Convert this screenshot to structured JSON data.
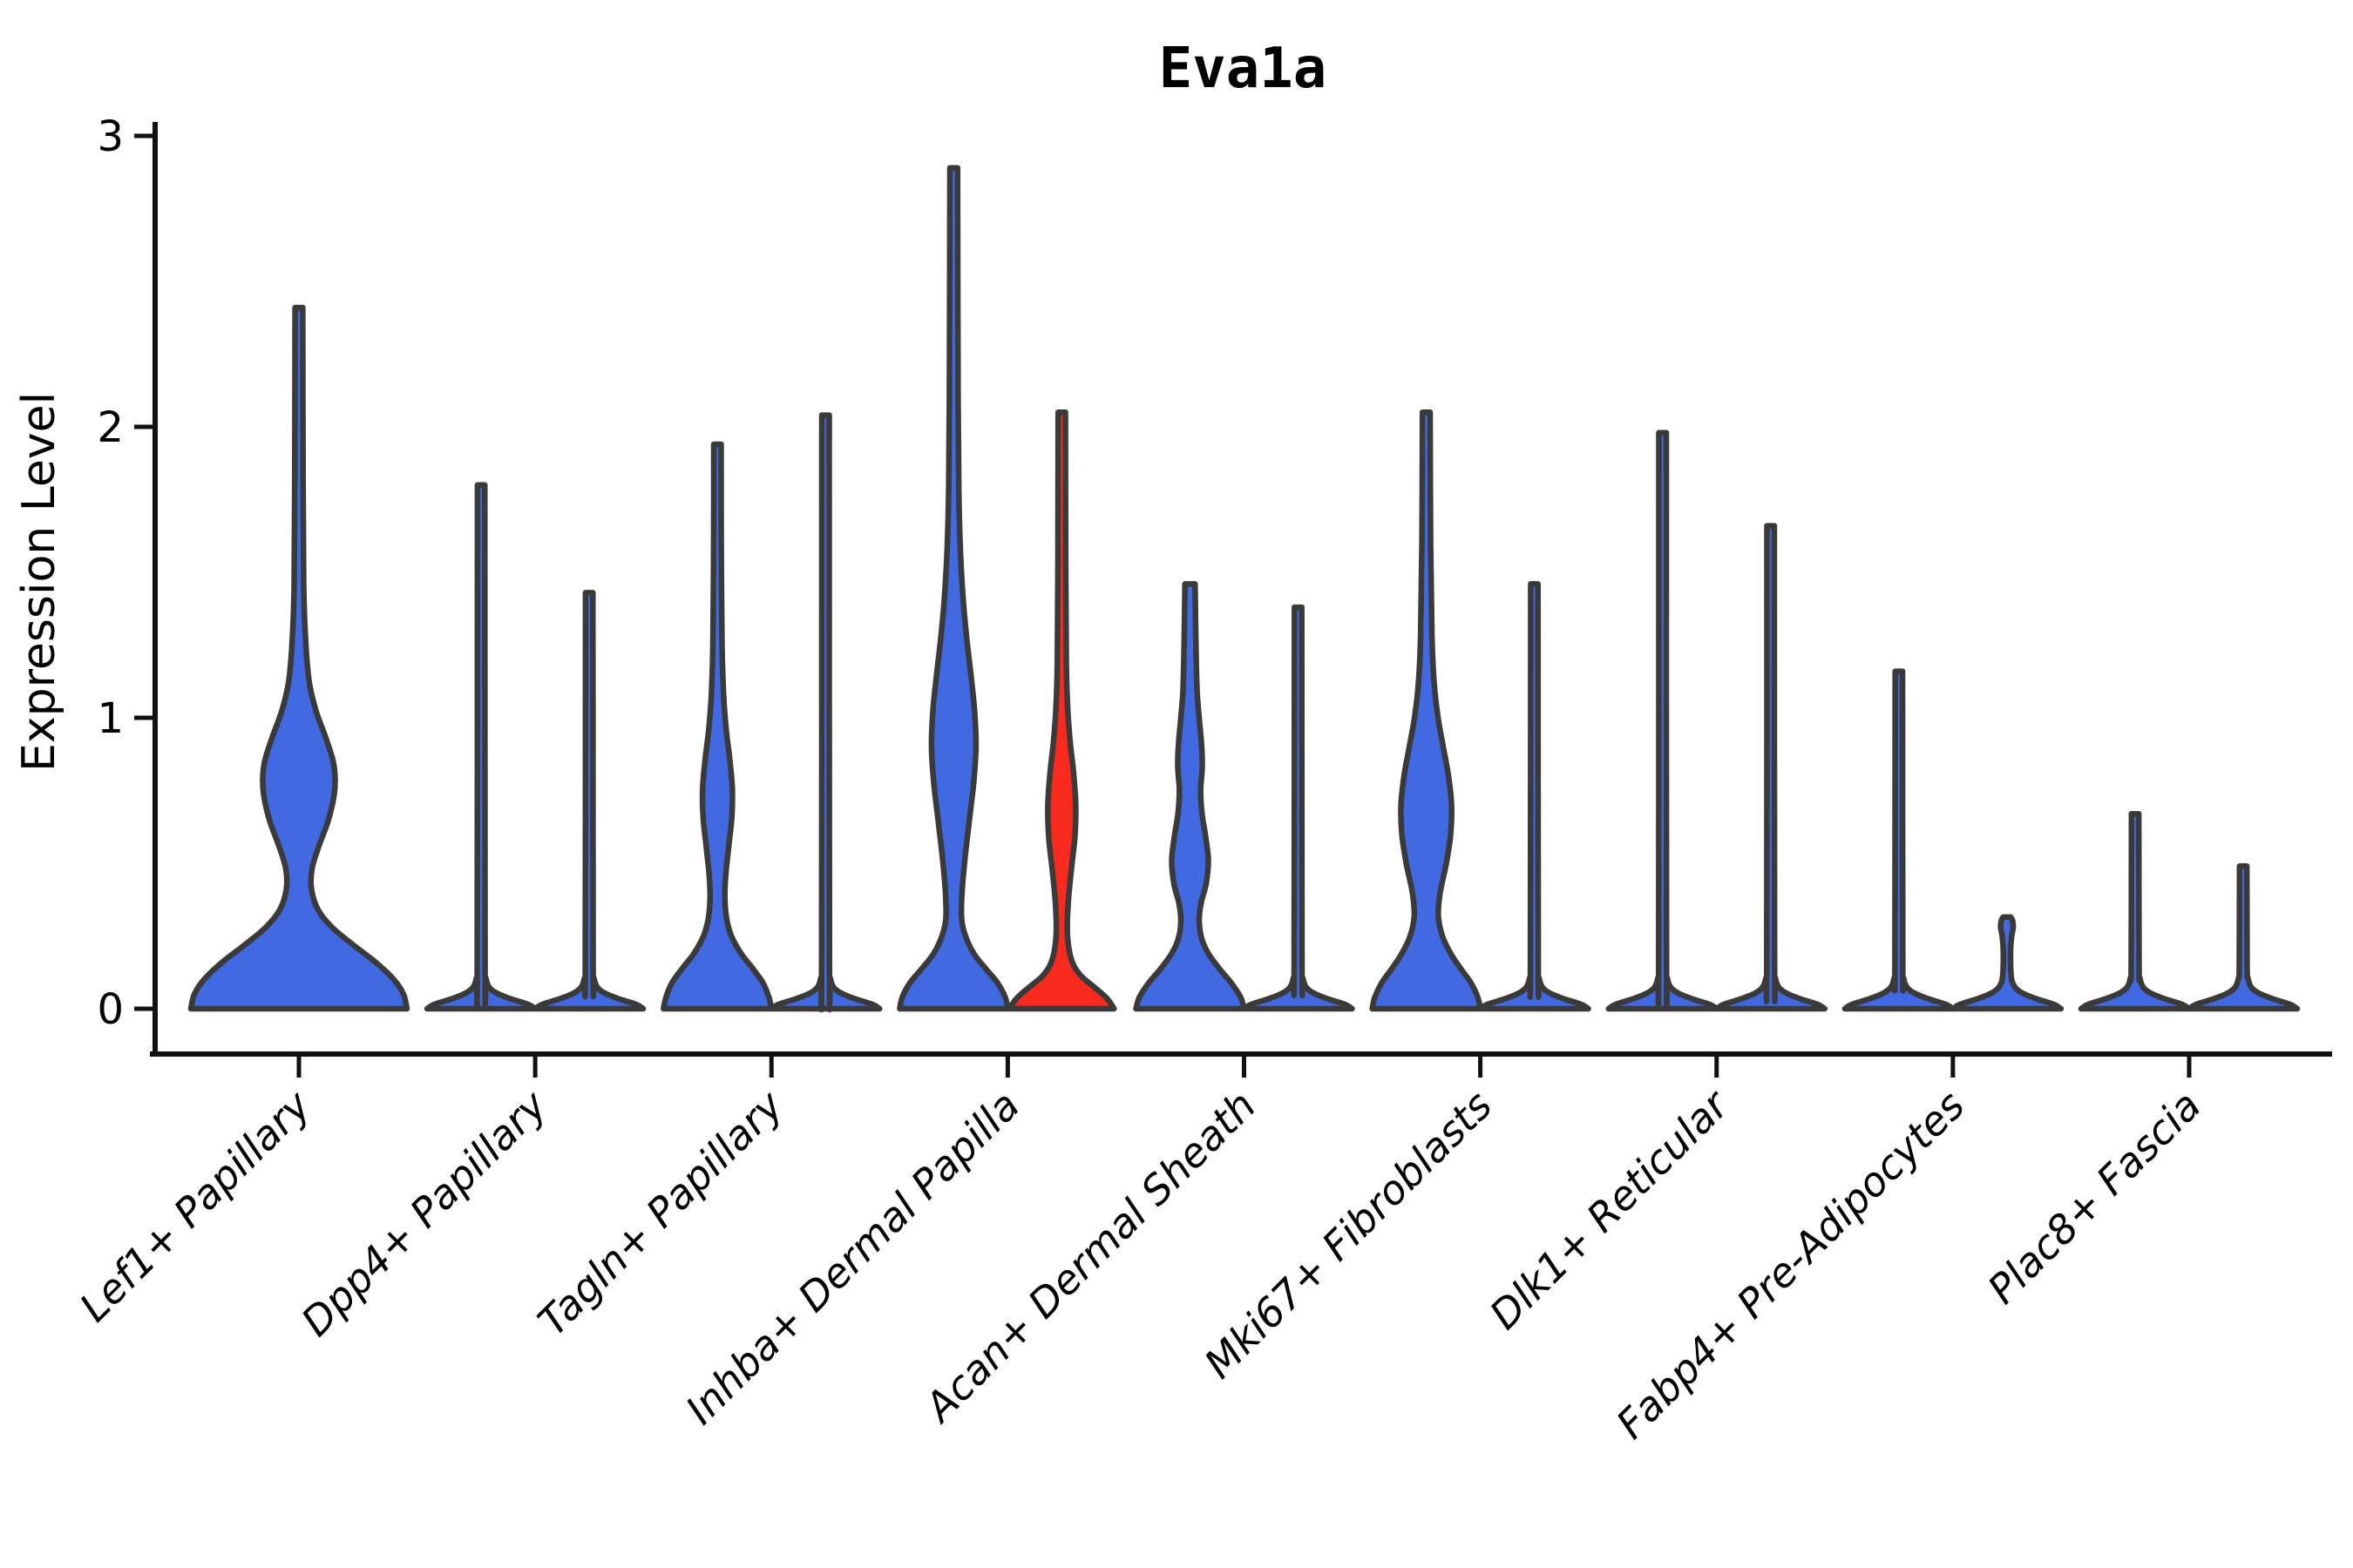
{
  "title": "Eva1a",
  "axes": {
    "ylabel": "Expression Level",
    "ytick_labels": [
      "0",
      "1",
      "2",
      "3"
    ]
  },
  "colors": {
    "violin_blue": "#4169E1",
    "violin_red": "#F8291D",
    "violin_outline": "#3A3A3A",
    "axis": "#111111",
    "text": "#000000",
    "background": "#FFFFFF"
  },
  "chart_data": {
    "type": "violin",
    "title": "Eva1a",
    "xlabel": "",
    "ylabel": "Expression Level",
    "ylim": [
      0,
      3
    ],
    "yticks": [
      0,
      1,
      2,
      3
    ],
    "grid": false,
    "legend": "none",
    "categories": [
      "Lef1+ Papillary",
      "Dpp4+ Papillary",
      "Tagln+ Papillary",
      "Inhba+ Dermal Papilla",
      "Acan+ Dermal Sheath",
      "Mki67+ Fibroblasts",
      "Dlk1+ Reticular",
      "Fabp4+ Pre-Adipocytes",
      "Plac8+ Fascia"
    ],
    "violins": [
      {
        "cat": 0,
        "slot": "center",
        "color": "#4169E1",
        "max": 2.41,
        "profile": [
          [
            0,
            124
          ],
          [
            0.05,
            120
          ],
          [
            0.1,
            109
          ],
          [
            0.16,
            88
          ],
          [
            0.22,
            62
          ],
          [
            0.28,
            38
          ],
          [
            0.34,
            22
          ],
          [
            0.41,
            14.5
          ],
          [
            0.48,
            15
          ],
          [
            0.56,
            23
          ],
          [
            0.65,
            34
          ],
          [
            0.75,
            41
          ],
          [
            0.84,
            40
          ],
          [
            0.93,
            31
          ],
          [
            1.02,
            20
          ],
          [
            1.12,
            12
          ],
          [
            1.25,
            8
          ],
          [
            1.45,
            5.5
          ],
          [
            1.8,
            4.8
          ],
          [
            2.41,
            4.4
          ]
        ]
      },
      {
        "cat": 1,
        "slot": "left",
        "color": "#4169E1",
        "max": 1.8,
        "profile": [
          [
            0,
            62
          ],
          [
            0.015,
            54
          ],
          [
            0.035,
            33
          ],
          [
            0.055,
            17
          ],
          [
            0.075,
            9
          ],
          [
            0.105,
            5.5
          ],
          [
            0.15,
            4.5
          ],
          [
            1.8,
            4.2
          ]
        ]
      },
      {
        "cat": 1,
        "slot": "right",
        "color": "#4169E1",
        "max": 1.43,
        "profile": [
          [
            0,
            62
          ],
          [
            0.015,
            54
          ],
          [
            0.035,
            33
          ],
          [
            0.055,
            17
          ],
          [
            0.075,
            9
          ],
          [
            0.105,
            5.5
          ],
          [
            0.15,
            4.5
          ],
          [
            1.43,
            4.2
          ]
        ]
      },
      {
        "cat": 2,
        "slot": "left",
        "color": "#4169E1",
        "max": 1.94,
        "profile": [
          [
            0,
            62
          ],
          [
            0.04,
            59
          ],
          [
            0.09,
            52
          ],
          [
            0.14,
            40
          ],
          [
            0.19,
            27
          ],
          [
            0.25,
            16
          ],
          [
            0.31,
            10.5
          ],
          [
            0.38,
            8.5
          ],
          [
            0.46,
            9.5
          ],
          [
            0.56,
            13
          ],
          [
            0.66,
            16.5
          ],
          [
            0.76,
            17
          ],
          [
            0.86,
            14
          ],
          [
            0.96,
            10
          ],
          [
            1.08,
            7
          ],
          [
            1.25,
            5.2
          ],
          [
            1.6,
            4.4
          ],
          [
            1.94,
            4.2
          ]
        ]
      },
      {
        "cat": 2,
        "slot": "right",
        "color": "#4169E1",
        "max": 2.04,
        "profile": [
          [
            0,
            62
          ],
          [
            0.015,
            54
          ],
          [
            0.035,
            33
          ],
          [
            0.055,
            17
          ],
          [
            0.075,
            9
          ],
          [
            0.105,
            5.5
          ],
          [
            0.15,
            4.5
          ],
          [
            2.04,
            4.2
          ]
        ]
      },
      {
        "cat": 3,
        "slot": "left",
        "color": "#4169E1",
        "max": 2.89,
        "profile": [
          [
            0,
            62
          ],
          [
            0.04,
            59
          ],
          [
            0.09,
            50
          ],
          [
            0.14,
            36
          ],
          [
            0.19,
            23
          ],
          [
            0.25,
            13.5
          ],
          [
            0.31,
            9
          ],
          [
            0.4,
            9.5
          ],
          [
            0.52,
            13
          ],
          [
            0.65,
            18
          ],
          [
            0.78,
            23
          ],
          [
            0.9,
            25.5
          ],
          [
            1.02,
            24
          ],
          [
            1.14,
            20
          ],
          [
            1.27,
            15
          ],
          [
            1.4,
            11
          ],
          [
            1.55,
            8
          ],
          [
            1.75,
            6
          ],
          [
            2.1,
            5
          ],
          [
            2.89,
            4.4
          ]
        ]
      },
      {
        "cat": 3,
        "slot": "right",
        "color": "#F8291D",
        "max": 2.05,
        "profile": [
          [
            0,
            60
          ],
          [
            0.035,
            52
          ],
          [
            0.075,
            37
          ],
          [
            0.11,
            23
          ],
          [
            0.15,
            13.5
          ],
          [
            0.2,
            8.5
          ],
          [
            0.27,
            6.3
          ],
          [
            0.37,
            7.5
          ],
          [
            0.48,
            11
          ],
          [
            0.59,
            15
          ],
          [
            0.7,
            16
          ],
          [
            0.81,
            13.5
          ],
          [
            0.92,
            9.5
          ],
          [
            1.03,
            6.8
          ],
          [
            1.18,
            5.2
          ],
          [
            1.5,
            4.5
          ],
          [
            2.05,
            4.2
          ]
        ]
      },
      {
        "cat": 4,
        "slot": "left",
        "color": "#4169E1",
        "max": 1.46,
        "profile": [
          [
            0,
            62
          ],
          [
            0.04,
            58
          ],
          [
            0.09,
            47
          ],
          [
            0.14,
            33
          ],
          [
            0.19,
            21
          ],
          [
            0.24,
            13.5
          ],
          [
            0.3,
            10.5
          ],
          [
            0.36,
            12.5
          ],
          [
            0.43,
            18.5
          ],
          [
            0.51,
            21
          ],
          [
            0.59,
            18
          ],
          [
            0.67,
            13.8
          ],
          [
            0.75,
            12.2
          ],
          [
            0.83,
            14
          ],
          [
            0.91,
            13.2
          ],
          [
            1.0,
            10.5
          ],
          [
            1.1,
            8
          ],
          [
            1.25,
            6.8
          ],
          [
            1.46,
            5.8
          ]
        ]
      },
      {
        "cat": 4,
        "slot": "right",
        "color": "#4169E1",
        "max": 1.38,
        "profile": [
          [
            0,
            62
          ],
          [
            0.015,
            54
          ],
          [
            0.035,
            33
          ],
          [
            0.055,
            17
          ],
          [
            0.075,
            9
          ],
          [
            0.105,
            5.5
          ],
          [
            0.15,
            4.5
          ],
          [
            1.38,
            4.2
          ]
        ]
      },
      {
        "cat": 5,
        "slot": "left",
        "color": "#4169E1",
        "max": 2.05,
        "profile": [
          [
            0,
            62
          ],
          [
            0.04,
            59
          ],
          [
            0.09,
            51
          ],
          [
            0.14,
            39
          ],
          [
            0.19,
            28
          ],
          [
            0.25,
            18.5
          ],
          [
            0.32,
            13.8
          ],
          [
            0.4,
            16
          ],
          [
            0.5,
            23
          ],
          [
            0.6,
            28
          ],
          [
            0.7,
            29
          ],
          [
            0.8,
            25.5
          ],
          [
            0.9,
            19.5
          ],
          [
            1.0,
            13.5
          ],
          [
            1.12,
            9
          ],
          [
            1.28,
            6.5
          ],
          [
            1.6,
            5
          ],
          [
            2.05,
            4.4
          ]
        ]
      },
      {
        "cat": 5,
        "slot": "right",
        "color": "#4169E1",
        "max": 1.46,
        "profile": [
          [
            0,
            62
          ],
          [
            0.015,
            54
          ],
          [
            0.035,
            33
          ],
          [
            0.055,
            17
          ],
          [
            0.075,
            9
          ],
          [
            0.105,
            5.5
          ],
          [
            0.15,
            4.5
          ],
          [
            1.46,
            4.2
          ]
        ]
      },
      {
        "cat": 6,
        "slot": "left",
        "color": "#4169E1",
        "max": 1.98,
        "profile": [
          [
            0,
            62
          ],
          [
            0.015,
            54
          ],
          [
            0.035,
            33
          ],
          [
            0.055,
            17
          ],
          [
            0.075,
            9
          ],
          [
            0.105,
            5.5
          ],
          [
            0.15,
            4.5
          ],
          [
            1.98,
            4.2
          ]
        ]
      },
      {
        "cat": 6,
        "slot": "right",
        "color": "#4169E1",
        "max": 1.66,
        "profile": [
          [
            0,
            62
          ],
          [
            0.015,
            54
          ],
          [
            0.035,
            33
          ],
          [
            0.055,
            17
          ],
          [
            0.075,
            9
          ],
          [
            0.105,
            5.5
          ],
          [
            0.15,
            4.5
          ],
          [
            1.66,
            4.2
          ]
        ]
      },
      {
        "cat": 7,
        "slot": "left",
        "color": "#4169E1",
        "max": 1.16,
        "profile": [
          [
            0,
            62
          ],
          [
            0.015,
            54
          ],
          [
            0.035,
            33
          ],
          [
            0.055,
            17
          ],
          [
            0.075,
            9
          ],
          [
            0.105,
            5.5
          ],
          [
            0.15,
            4.5
          ],
          [
            1.16,
            4.2
          ]
        ]
      },
      {
        "cat": 7,
        "slot": "right",
        "color": "#4169E1",
        "max": 0.31,
        "profile": [
          [
            0,
            62
          ],
          [
            0.015,
            54
          ],
          [
            0.035,
            33
          ],
          [
            0.055,
            17
          ],
          [
            0.075,
            9
          ],
          [
            0.1,
            5.5
          ],
          [
            0.14,
            4.3
          ],
          [
            0.21,
            4.3
          ],
          [
            0.25,
            5.5
          ],
          [
            0.28,
            7.2
          ],
          [
            0.305,
            6.3
          ],
          [
            0.315,
            4.2
          ]
        ]
      },
      {
        "cat": 8,
        "slot": "left",
        "color": "#4169E1",
        "max": 0.67,
        "profile": [
          [
            0,
            62
          ],
          [
            0.015,
            54
          ],
          [
            0.035,
            33
          ],
          [
            0.055,
            17
          ],
          [
            0.075,
            9
          ],
          [
            0.105,
            5.5
          ],
          [
            0.15,
            4.5
          ],
          [
            0.67,
            4.2
          ]
        ]
      },
      {
        "cat": 8,
        "slot": "right",
        "color": "#4169E1",
        "max": 0.49,
        "profile": [
          [
            0,
            62
          ],
          [
            0.015,
            54
          ],
          [
            0.035,
            33
          ],
          [
            0.055,
            17
          ],
          [
            0.075,
            9
          ],
          [
            0.105,
            5.5
          ],
          [
            0.15,
            4.5
          ],
          [
            0.49,
            4.2
          ]
        ]
      }
    ]
  }
}
